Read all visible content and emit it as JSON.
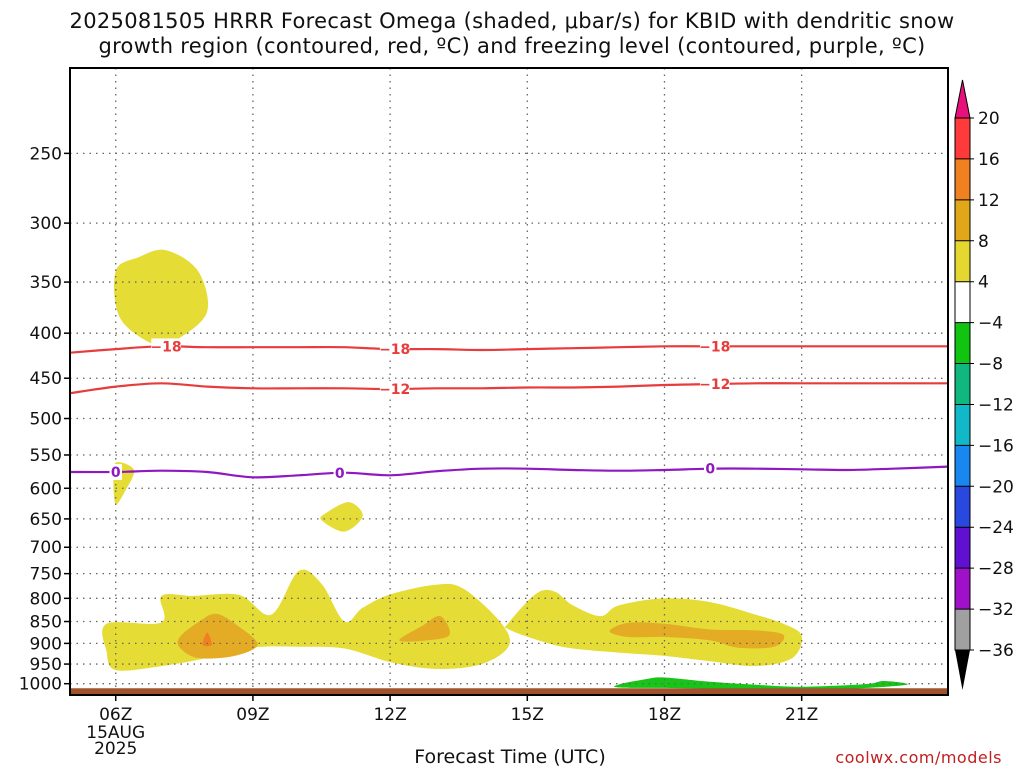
{
  "title": {
    "line1": "2025081505 HRRR Forecast Omega (shaded, μbar/s) for KBID with dendritic snow",
    "line2": "growth region (contoured, red, ºC) and freezing level (contoured, purple, ºC)"
  },
  "watermark": "coolwx.com/models",
  "chart_data": {
    "type": "heatmap",
    "xlabel": "Forecast Time (UTC)",
    "ylabel": "",
    "x_axis": {
      "unit": "hour UTC, 2025-08-15",
      "range": [
        5,
        24.2
      ],
      "ticks": [
        {
          "hour": 6,
          "label": "06Z",
          "sub": [
            "15AUG",
            "2025"
          ]
        },
        {
          "hour": 9,
          "label": "09Z",
          "sub": []
        },
        {
          "hour": 12,
          "label": "12Z",
          "sub": []
        },
        {
          "hour": 15,
          "label": "15Z",
          "sub": []
        },
        {
          "hour": 18,
          "label": "18Z",
          "sub": []
        },
        {
          "hour": 21,
          "label": "21Z",
          "sub": []
        }
      ]
    },
    "y_axis": {
      "unit": "hPa",
      "scale": "log",
      "inverted": true,
      "range": [
        1030,
        200
      ],
      "ticks": [
        250,
        300,
        350,
        400,
        450,
        500,
        550,
        600,
        650,
        700,
        750,
        800,
        850,
        900,
        950,
        1000
      ]
    },
    "grid": true,
    "colorbar": {
      "labels": [
        "20",
        "16",
        "12",
        "8",
        "4",
        "−4",
        "−8",
        "−12",
        "−16",
        "−20",
        "−24",
        "−28",
        "−32",
        "−36"
      ],
      "colors": [
        "#ff3a3a",
        "#f08020",
        "#e0a818",
        "#e4d830",
        "#e6e03c",
        "#ffffff",
        "#10c410",
        "#10b880",
        "#10b8c8",
        "#1888f0",
        "#2848e0",
        "#6010d0",
        "#a010c8",
        "#a0a0a0"
      ],
      "top_cap": "#e8107a",
      "bottom_cap": "#000000"
    },
    "ground_color": "#a0522d",
    "omega_regions": [
      {
        "level": "4 to 8",
        "color": "#e6dc36",
        "points": [
          [
            6.0,
            340
          ],
          [
            6.5,
            328
          ],
          [
            7.1,
            322
          ],
          [
            7.8,
            340
          ],
          [
            8.0,
            378
          ],
          [
            7.4,
            405
          ],
          [
            6.9,
            413
          ],
          [
            6.1,
            385
          ]
        ]
      },
      {
        "level": "4 to 8",
        "color": "#e6dc36",
        "points": [
          [
            6.0,
            561
          ],
          [
            6.4,
            572
          ],
          [
            6.2,
            605
          ],
          [
            6.0,
            625
          ],
          [
            5.95,
            590
          ]
        ]
      },
      {
        "level": "4 to 8",
        "color": "#e6dc36",
        "points": [
          [
            10.6,
            640
          ],
          [
            11.1,
            622
          ],
          [
            11.4,
            645
          ],
          [
            11.0,
            672
          ],
          [
            10.5,
            652
          ]
        ]
      },
      {
        "level": "4 to 8",
        "color": "#e6dc36",
        "points": [
          [
            5.8,
            855
          ],
          [
            7.0,
            852
          ],
          [
            7.0,
            795
          ],
          [
            7.7,
            795
          ],
          [
            8.7,
            793
          ],
          [
            9.4,
            835
          ],
          [
            10.0,
            745
          ],
          [
            10.5,
            770
          ],
          [
            11.0,
            850
          ],
          [
            11.4,
            820
          ],
          [
            12.0,
            792
          ],
          [
            13.0,
            772
          ],
          [
            13.6,
            780
          ],
          [
            14.4,
            850
          ],
          [
            14.6,
            905
          ],
          [
            14.0,
            950
          ],
          [
            13.0,
            962
          ],
          [
            12.0,
            945
          ],
          [
            11.0,
            912
          ],
          [
            10.0,
            908
          ],
          [
            9.0,
            910
          ],
          [
            8.0,
            935
          ],
          [
            7.0,
            955
          ],
          [
            6.0,
            965
          ],
          [
            5.8,
            920
          ]
        ]
      },
      {
        "level": "4 to 8",
        "color": "#e6dc36",
        "points": [
          [
            14.6,
            852
          ],
          [
            15.2,
            790
          ],
          [
            15.6,
            786
          ],
          [
            16.0,
            815
          ],
          [
            16.6,
            838
          ],
          [
            17.0,
            815
          ],
          [
            18.0,
            800
          ],
          [
            19.0,
            808
          ],
          [
            20.0,
            835
          ],
          [
            20.6,
            855
          ],
          [
            21.0,
            882
          ],
          [
            20.8,
            935
          ],
          [
            20.0,
            955
          ],
          [
            19.0,
            943
          ],
          [
            18.0,
            930
          ],
          [
            17.0,
            922
          ],
          [
            16.0,
            912
          ],
          [
            15.4,
            898
          ],
          [
            14.6,
            868
          ]
        ]
      },
      {
        "level": "8 to 12",
        "color": "#e3ac24",
        "points": [
          [
            7.4,
            885
          ],
          [
            7.8,
            852
          ],
          [
            8.2,
            833
          ],
          [
            8.7,
            862
          ],
          [
            9.1,
            903
          ],
          [
            8.6,
            930
          ],
          [
            7.8,
            935
          ],
          [
            7.4,
            910
          ]
        ]
      },
      {
        "level": "8 to 12",
        "color": "#e3ac24",
        "points": [
          [
            12.2,
            893
          ],
          [
            12.7,
            860
          ],
          [
            13.1,
            838
          ],
          [
            13.3,
            880
          ],
          [
            12.8,
            893
          ]
        ]
      },
      {
        "level": "8 to 12",
        "color": "#e3ac24",
        "points": [
          [
            16.8,
            872
          ],
          [
            17.2,
            853
          ],
          [
            18.0,
            855
          ],
          [
            19.0,
            868
          ],
          [
            20.0,
            870
          ],
          [
            20.6,
            880
          ],
          [
            20.4,
            908
          ],
          [
            19.6,
            910
          ],
          [
            19.0,
            893
          ],
          [
            18.0,
            885
          ],
          [
            17.2,
            885
          ]
        ]
      },
      {
        "level": "12 to 16",
        "color": "#f08020",
        "points": [
          [
            7.9,
            903
          ],
          [
            8.0,
            875
          ],
          [
            8.1,
            903
          ]
        ]
      },
      {
        "level": "-4 to -8",
        "color": "#18c418",
        "points": [
          [
            17.0,
            1002
          ],
          [
            17.6,
            988
          ],
          [
            18.0,
            984
          ],
          [
            19.0,
            995
          ],
          [
            20.0,
            1003
          ],
          [
            21.0,
            1008
          ],
          [
            22.4,
            1001
          ],
          [
            22.8,
            993
          ],
          [
            23.3,
            1003
          ],
          [
            22.0,
            1014
          ],
          [
            21.0,
            1019
          ],
          [
            20.0,
            1017
          ],
          [
            19.0,
            1013
          ],
          [
            18.0,
            1011
          ],
          [
            17.0,
            1010
          ]
        ]
      }
    ],
    "contours": [
      {
        "value": -18,
        "color": "#e83c3c",
        "label": "−18",
        "points": [
          [
            5.0,
            421
          ],
          [
            6.0,
            417
          ],
          [
            7.0,
            414
          ],
          [
            8.0,
            415
          ],
          [
            9.0,
            415
          ],
          [
            10.0,
            415
          ],
          [
            11.0,
            415
          ],
          [
            12.0,
            417
          ],
          [
            13.0,
            417
          ],
          [
            14.0,
            418
          ],
          [
            15.0,
            417
          ],
          [
            16.0,
            416
          ],
          [
            17.0,
            415
          ],
          [
            18.0,
            414
          ],
          [
            19.0,
            414
          ],
          [
            20.0,
            414
          ],
          [
            21.0,
            414
          ],
          [
            22.0,
            414
          ],
          [
            23.0,
            414
          ],
          [
            24.2,
            414
          ]
        ],
        "labels_at": [
          7.1,
          12.1,
          19.1
        ]
      },
      {
        "value": -12,
        "color": "#e83c3c",
        "label": "−12",
        "points": [
          [
            5.0,
            468
          ],
          [
            6.0,
            460
          ],
          [
            7.0,
            456
          ],
          [
            8.0,
            460
          ],
          [
            9.0,
            462
          ],
          [
            10.0,
            462
          ],
          [
            11.0,
            462
          ],
          [
            12.0,
            463
          ],
          [
            13.0,
            462
          ],
          [
            14.0,
            462
          ],
          [
            15.0,
            461
          ],
          [
            16.0,
            461
          ],
          [
            17.0,
            460
          ],
          [
            18.0,
            458
          ],
          [
            19.0,
            457
          ],
          [
            20.0,
            456
          ],
          [
            21.0,
            456
          ],
          [
            22.0,
            456
          ],
          [
            23.0,
            456
          ],
          [
            24.2,
            456
          ]
        ],
        "labels_at": [
          12.1,
          19.1
        ]
      },
      {
        "value": 0,
        "color": "#9018c0",
        "label": "0",
        "points": [
          [
            5.0,
            575
          ],
          [
            6.0,
            575
          ],
          [
            7.0,
            573
          ],
          [
            8.0,
            575
          ],
          [
            9.0,
            583
          ],
          [
            10.0,
            580
          ],
          [
            11.0,
            576
          ],
          [
            12.0,
            580
          ],
          [
            13.0,
            574
          ],
          [
            14.0,
            570
          ],
          [
            15.0,
            570
          ],
          [
            16.0,
            572
          ],
          [
            17.0,
            573
          ],
          [
            18.0,
            572
          ],
          [
            19.0,
            570
          ],
          [
            20.0,
            570
          ],
          [
            21.0,
            571
          ],
          [
            22.0,
            572
          ],
          [
            23.0,
            570
          ],
          [
            24.2,
            567
          ]
        ],
        "labels_at": [
          6.0,
          10.9,
          19.0
        ]
      }
    ]
  }
}
